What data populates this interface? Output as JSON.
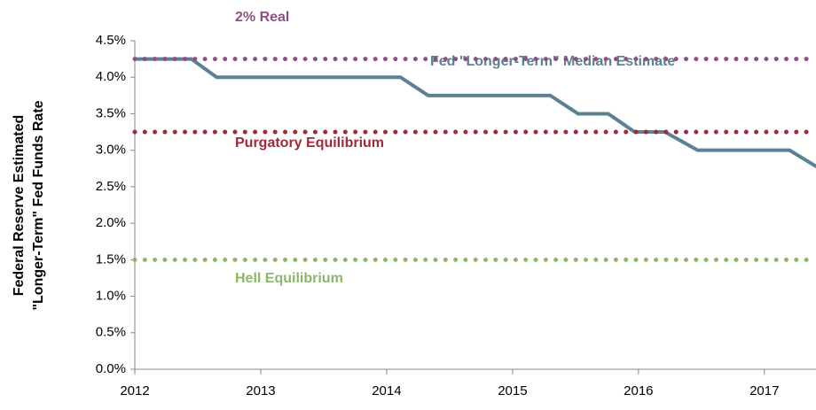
{
  "chart_data": {
    "type": "line",
    "y_label": [
      "Federal Reserve Estimated",
      "\"Longer-Term\" Fed Funds Rate"
    ],
    "x": [
      2012,
      2012.45,
      2012.65,
      2014.11,
      2014.33,
      2015.3,
      2015.52,
      2015.76,
      2015.97,
      2016.21,
      2016.47,
      2017.2,
      2017.41
    ],
    "series": [
      {
        "name": "Fed \"Longer-Term\" Median Estimate",
        "color": "#5b8294",
        "style": "solid",
        "values": [
          4.25,
          4.25,
          4.0,
          4.0,
          3.75,
          3.75,
          3.5,
          3.5,
          3.25,
          3.25,
          3.0,
          3.0,
          2.78
        ]
      },
      {
        "name": "2% Real",
        "color": "#8e4f86",
        "style": "dotted",
        "values": [
          4.25,
          4.25,
          4.25,
          4.25,
          4.25,
          4.25,
          4.25,
          4.25,
          4.25,
          4.25,
          4.25,
          4.25,
          4.25
        ]
      },
      {
        "name": "Purgatory Equilibrium",
        "color": "#9e2b35",
        "style": "dotted",
        "values": [
          3.25,
          3.25,
          3.25,
          3.25,
          3.25,
          3.25,
          3.25,
          3.25,
          3.25,
          3.25,
          3.25,
          3.25,
          3.25
        ]
      },
      {
        "name": "Hell Equilibrium",
        "color": "#8ab76a",
        "style": "dotted",
        "values": [
          1.5,
          1.5,
          1.5,
          1.5,
          1.5,
          1.5,
          1.5,
          1.5,
          1.5,
          1.5,
          1.5,
          1.5,
          1.5
        ]
      }
    ],
    "xlim": [
      2012,
      2017.41
    ],
    "xticks": [
      2012,
      2013,
      2014,
      2015,
      2016,
      2017
    ],
    "ylim": [
      0,
      4.5
    ],
    "yticks": [
      {
        "value": 0,
        "label": "0.0%"
      },
      {
        "value": 0.5,
        "label": "0.5%"
      },
      {
        "value": 1,
        "label": "1.0%"
      },
      {
        "value": 1.5,
        "label": "1.5%"
      },
      {
        "value": 2,
        "label": "2.0%"
      },
      {
        "value": 2.5,
        "label": "2.5%"
      },
      {
        "value": 3,
        "label": "3.0%"
      },
      {
        "value": 3.5,
        "label": "3.5%"
      },
      {
        "value": 4,
        "label": "4.0%"
      },
      {
        "value": 4.5,
        "label": "4.5%"
      }
    ],
    "grid": false
  }
}
